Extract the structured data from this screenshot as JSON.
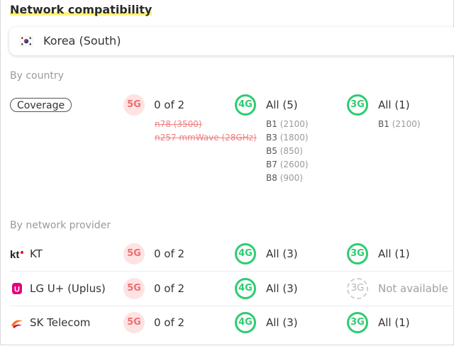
{
  "title": "Network compatibility",
  "country": {
    "name": "Korea (South)",
    "flag_icon": "korea-flag-icon"
  },
  "by_country": {
    "label": "By country",
    "coverage_label": "Coverage",
    "g5": {
      "badge": "5G",
      "summary": "0 of 2",
      "bands": [
        {
          "band": "n78",
          "freq": "(3500)"
        },
        {
          "band": "n257 mmWave",
          "freq": "(28GHz)"
        }
      ]
    },
    "g4": {
      "badge": "4G",
      "summary": "All (5)",
      "bands": [
        {
          "band": "B1",
          "freq": "(2100)"
        },
        {
          "band": "B3",
          "freq": "(1800)"
        },
        {
          "band": "B5",
          "freq": "(850)"
        },
        {
          "band": "B7",
          "freq": "(2600)"
        },
        {
          "band": "B8",
          "freq": "(900)"
        }
      ]
    },
    "g3": {
      "badge": "3G",
      "summary": "All (1)",
      "bands": [
        {
          "band": "B1",
          "freq": "(2100)"
        }
      ]
    }
  },
  "by_provider": {
    "label": "By network provider",
    "providers": [
      {
        "name": "KT",
        "logo": "kt-logo-icon",
        "g5": "0 of 2",
        "g4": "All (3)",
        "g3": "All (1)",
        "g3_available": true
      },
      {
        "name": "LG U+ (Uplus)",
        "logo": "lg-uplus-logo-icon",
        "g5": "0 of 2",
        "g4": "All (3)",
        "g3": "Not available",
        "g3_available": false
      },
      {
        "name": "SK Telecom",
        "logo": "sk-telecom-logo-icon",
        "g5": "0 of 2",
        "g4": "All (3)",
        "g3": "All (1)",
        "g3_available": true
      }
    ],
    "badge_5g": "5G",
    "badge_4g": "4G",
    "badge_3g": "3G"
  },
  "colors": {
    "green": "#2ecc71",
    "red": "#ef6e6e",
    "pink_bg": "#fde3e3",
    "highlight": "#fff27a"
  }
}
